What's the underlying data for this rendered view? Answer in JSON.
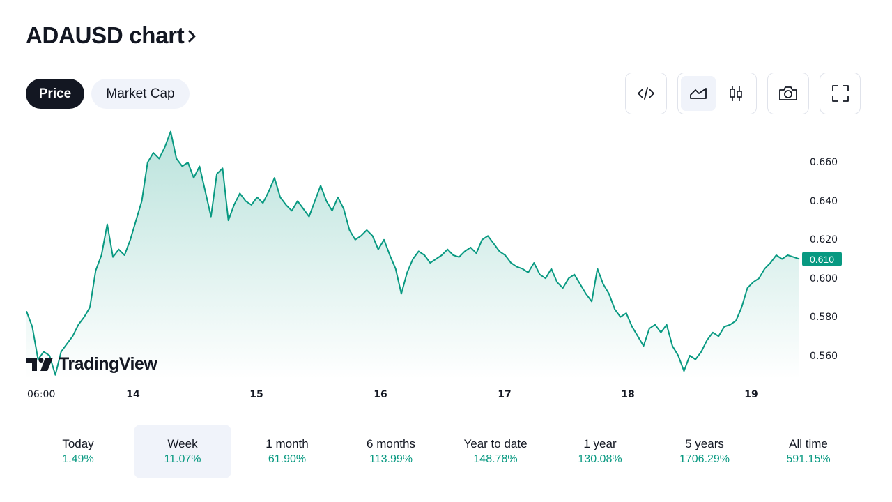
{
  "header": {
    "title": "ADAUSD chart",
    "chevron_icon": "chevron-right-icon"
  },
  "tabs": [
    {
      "label": "Price",
      "active": true
    },
    {
      "label": "Market Cap",
      "active": false
    }
  ],
  "toolbar": {
    "embed_icon": "code-icon",
    "area_chart_icon": "area-chart-icon",
    "candles_icon": "candlestick-icon",
    "snapshot_icon": "camera-icon",
    "fullscreen_icon": "fullscreen-icon",
    "active_chart_style": "area"
  },
  "chart_data": {
    "type": "area",
    "symbol": "ADAUSD",
    "x_ticks": [
      "06:00",
      "14",
      "15",
      "16",
      "17",
      "18",
      "19"
    ],
    "y_ticks": [
      "0.660",
      "0.640",
      "0.620",
      "0.600",
      "0.580",
      "0.560"
    ],
    "ylim": [
      0.548,
      0.676
    ],
    "last_price": "0.610",
    "line_color": "#089981",
    "fill_color": "#089981",
    "series": [
      {
        "values": [
          0.583,
          0.575,
          0.558,
          0.562,
          0.56,
          0.55,
          0.562,
          0.566,
          0.57,
          0.576,
          0.58,
          0.585,
          0.604,
          0.612,
          0.628,
          0.611,
          0.615,
          0.612,
          0.62,
          0.63,
          0.64,
          0.66,
          0.665,
          0.662,
          0.668,
          0.676,
          0.662,
          0.658,
          0.66,
          0.652,
          0.658,
          0.645,
          0.632,
          0.654,
          0.657,
          0.63,
          0.638,
          0.644,
          0.64,
          0.638,
          0.642,
          0.639,
          0.645,
          0.652,
          0.642,
          0.638,
          0.635,
          0.64,
          0.636,
          0.632,
          0.64,
          0.648,
          0.64,
          0.635,
          0.642,
          0.636,
          0.625,
          0.62,
          0.622,
          0.625,
          0.622,
          0.615,
          0.62,
          0.612,
          0.605,
          0.592,
          0.603,
          0.61,
          0.614,
          0.612,
          0.608,
          0.61,
          0.612,
          0.615,
          0.612,
          0.611,
          0.614,
          0.616,
          0.613,
          0.62,
          0.622,
          0.618,
          0.614,
          0.612,
          0.608,
          0.606,
          0.605,
          0.603,
          0.608,
          0.602,
          0.6,
          0.605,
          0.598,
          0.595,
          0.6,
          0.602,
          0.597,
          0.592,
          0.588,
          0.605,
          0.597,
          0.592,
          0.584,
          0.58,
          0.582,
          0.575,
          0.57,
          0.565,
          0.574,
          0.576,
          0.572,
          0.576,
          0.565,
          0.56,
          0.552,
          0.56,
          0.558,
          0.562,
          0.568,
          0.572,
          0.57,
          0.575,
          0.576,
          0.578,
          0.585,
          0.595,
          0.598,
          0.6,
          0.605,
          0.608,
          0.612,
          0.61,
          0.612,
          0.611,
          0.61
        ]
      }
    ]
  },
  "watermark": {
    "brand": "TradingView",
    "logo_icon": "tradingview-logo-icon"
  },
  "periods": [
    {
      "label": "Today",
      "value": "1.49%",
      "active": false
    },
    {
      "label": "Week",
      "value": "11.07%",
      "active": true
    },
    {
      "label": "1 month",
      "value": "61.90%",
      "active": false
    },
    {
      "label": "6 months",
      "value": "113.99%",
      "active": false
    },
    {
      "label": "Year to date",
      "value": "148.78%",
      "active": false
    },
    {
      "label": "1 year",
      "value": "130.08%",
      "active": false
    },
    {
      "label": "5 years",
      "value": "1706.29%",
      "active": false
    },
    {
      "label": "All time",
      "value": "591.15%",
      "active": false
    }
  ]
}
